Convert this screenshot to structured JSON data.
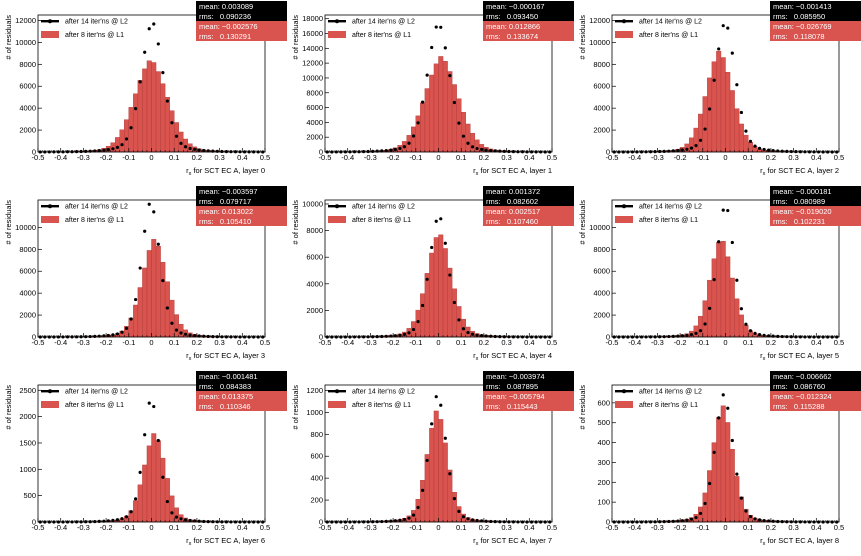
{
  "figure_title": "",
  "colors": {
    "l1": "#d9534f",
    "l1_edge": "#b03a36",
    "l2_marker": "#000000",
    "stat_dark": "#000000",
    "stat_red": "#d9534f"
  },
  "chart_data": [
    {
      "type": "bar",
      "title": "",
      "xlabel": "r_x for SCT EC A, layer 0",
      "xlabel_main": "r",
      "xlabel_sub": "x",
      "xlabel_rest": " for SCT EC A, layer 0",
      "ylabel": "# of residuals",
      "xlim": [
        -0.5,
        0.5
      ],
      "ylim": [
        0,
        12500
      ],
      "xticks": [
        "-0.5",
        "-0.4",
        "-0.3",
        "-0.2",
        "-0.1",
        "0",
        "0.1",
        "0.2",
        "0.3",
        "0.4",
        "0.5"
      ],
      "yticks": [
        0,
        2000,
        4000,
        6000,
        8000,
        10000,
        12000
      ],
      "series": [
        {
          "name": "after 8 iter'ns @ L1",
          "kind": "histogram",
          "peak": 8500,
          "sigma": 0.075,
          "tail": 0.26,
          "mean": -0.002576,
          "rms": 0.130291
        },
        {
          "name": "after 14 iter'ns @ L2",
          "kind": "markers",
          "peak": 12000,
          "sigma": 0.048,
          "tail": 0.22,
          "mean": 0.003089,
          "rms": 0.090236
        }
      ],
      "stats": {
        "l2_mean": "mean: 0.003089",
        "l2_rms": "rms:   0.090236",
        "l1_mean": "mean: −0.002576",
        "l1_rms": "rms:   0.130291"
      }
    },
    {
      "type": "bar",
      "title": "",
      "xlabel": "r_x for SCT EC A, layer 1",
      "xlabel_main": "r",
      "xlabel_sub": "x",
      "xlabel_rest": " for SCT EC A, layer 1",
      "ylabel": "# of residuals",
      "xlim": [
        -0.5,
        0.5
      ],
      "ylim": [
        0,
        18500
      ],
      "xticks": [
        "-0.5",
        "-0.4",
        "-0.3",
        "-0.2",
        "-0.1",
        "0",
        "0.1",
        "0.2",
        "0.3",
        "0.4",
        "0.5"
      ],
      "yticks": [
        0,
        2000,
        4000,
        6000,
        8000,
        10000,
        12000,
        14000,
        16000,
        18000
      ],
      "series": [
        {
          "name": "after 8 iter'ns @ L1",
          "kind": "histogram",
          "peak": 13000,
          "sigma": 0.075,
          "tail": 0.26,
          "mean": 0.012866,
          "rms": 0.133674
        },
        {
          "name": "after 14 iter'ns @ L2",
          "kind": "markers",
          "peak": 17600,
          "sigma": 0.05,
          "tail": 0.22,
          "mean": -0.000167,
          "rms": 0.09345
        }
      ],
      "stats": {
        "l2_mean": "mean: −0.000167",
        "l2_rms": "rms:   0.093450",
        "l1_mean": "mean: 0.012866",
        "l1_rms": "rms:   0.133674"
      }
    },
    {
      "type": "bar",
      "title": "",
      "xlabel": "r_x for SCT EC A, layer 2",
      "xlabel_main": "r",
      "xlabel_sub": "x",
      "xlabel_rest": " for SCT EC A, layer 2",
      "ylabel": "# of residuals",
      "xlim": [
        -0.5,
        0.5
      ],
      "ylim": [
        0,
        12500
      ],
      "xticks": [
        "-0.5",
        "-0.4",
        "-0.3",
        "-0.2",
        "-0.1",
        "0",
        "0.1",
        "0.2",
        "0.3",
        "0.4",
        "0.5"
      ],
      "yticks": [
        0,
        2000,
        4000,
        6000,
        8000,
        10000,
        12000
      ],
      "series": [
        {
          "name": "after 8 iter'ns @ L1",
          "kind": "histogram",
          "peak": 9300,
          "sigma": 0.06,
          "tail": 0.22,
          "mean": -0.026769,
          "rms": 0.118078
        },
        {
          "name": "after 14 iter'ns @ L2",
          "kind": "markers",
          "peak": 12000,
          "sigma": 0.045,
          "tail": 0.2,
          "mean": -0.001413,
          "rms": 0.08595
        }
      ],
      "stats": {
        "l2_mean": "mean: −0.001413",
        "l2_rms": "rms:   0.085950",
        "l1_mean": "mean: −0.026769",
        "l1_rms": "rms:   0.118078"
      }
    },
    {
      "type": "bar",
      "title": "",
      "xlabel": "r_x for SCT EC A, layer 3",
      "xlabel_main": "r",
      "xlabel_sub": "x",
      "xlabel_rest": " for SCT EC A, layer 3",
      "ylabel": "# of residuals",
      "xlim": [
        -0.5,
        0.5
      ],
      "ylim": [
        0,
        12500
      ],
      "xticks": [
        "-0.5",
        "-0.4",
        "-0.3",
        "-0.2",
        "-0.1",
        "0",
        "0.1",
        "0.2",
        "0.3",
        "0.4",
        "0.5"
      ],
      "yticks": [
        0,
        2000,
        4000,
        6000,
        8000,
        10000
      ],
      "series": [
        {
          "name": "after 8 iter'ns @ L1",
          "kind": "histogram",
          "peak": 9000,
          "sigma": 0.055,
          "tail": 0.22,
          "mean": 0.013022,
          "rms": 0.10541
        },
        {
          "name": "after 14 iter'ns @ L2",
          "kind": "markers",
          "peak": 12500,
          "sigma": 0.04,
          "tail": 0.18,
          "mean": -0.003597,
          "rms": 0.079717
        }
      ],
      "stats": {
        "l2_mean": "mean: −0.003597",
        "l2_rms": "rms:   0.079717",
        "l1_mean": "mean: 0.013022",
        "l1_rms": "rms:   0.105410"
      }
    },
    {
      "type": "bar",
      "title": "",
      "xlabel": "r_x for SCT EC A, layer 4",
      "xlabel_main": "r",
      "xlabel_sub": "x",
      "xlabel_rest": " for SCT EC A, layer 4",
      "ylabel": "# of residuals",
      "xlim": [
        -0.5,
        0.5
      ],
      "ylim": [
        0,
        10300
      ],
      "xticks": [
        "-0.5",
        "-0.4",
        "-0.3",
        "-0.2",
        "-0.1",
        "0",
        "0.1",
        "0.2",
        "0.3",
        "0.4",
        "0.5"
      ],
      "yticks": [
        0,
        2000,
        4000,
        6000,
        8000,
        10000
      ],
      "series": [
        {
          "name": "after 8 iter'ns @ L1",
          "kind": "histogram",
          "peak": 7900,
          "sigma": 0.055,
          "tail": 0.22,
          "mean": 0.002517,
          "rms": 0.10746
        },
        {
          "name": "after 14 iter'ns @ L2",
          "kind": "markers",
          "peak": 9300,
          "sigma": 0.042,
          "tail": 0.18,
          "mean": 0.001372,
          "rms": 0.082602
        }
      ],
      "stats": {
        "l2_mean": "mean: 0.001372",
        "l2_rms": "rms:   0.082602",
        "l1_mean": "mean: 0.002517",
        "l1_rms": "rms:   0.107460"
      }
    },
    {
      "type": "bar",
      "title": "",
      "xlabel": "r_x for SCT EC A, layer 5",
      "xlabel_main": "r",
      "xlabel_sub": "x",
      "xlabel_rest": " for SCT EC A, layer 5",
      "ylabel": "# of residuals",
      "xlim": [
        -0.5,
        0.5
      ],
      "ylim": [
        0,
        12500
      ],
      "xticks": [
        "-0.5",
        "-0.4",
        "-0.3",
        "-0.2",
        "-0.1",
        "0",
        "0.1",
        "0.2",
        "0.3",
        "0.4",
        "0.5"
      ],
      "yticks": [
        0,
        2000,
        4000,
        6000,
        8000,
        10000
      ],
      "series": [
        {
          "name": "after 8 iter'ns @ L1",
          "kind": "histogram",
          "peak": 9100,
          "sigma": 0.05,
          "tail": 0.2,
          "mean": -0.01902,
          "rms": 0.102231
        },
        {
          "name": "after 14 iter'ns @ L2",
          "kind": "markers",
          "peak": 12300,
          "sigma": 0.038,
          "tail": 0.17,
          "mean": -0.000181,
          "rms": 0.080989
        }
      ],
      "stats": {
        "l2_mean": "mean: −0.000181",
        "l2_rms": "rms:   0.080989",
        "l1_mean": "mean: −0.019020",
        "l1_rms": "rms:   0.102231"
      }
    },
    {
      "type": "bar",
      "title": "",
      "xlabel": "r_x for SCT EC A, layer 6",
      "xlabel_main": "r",
      "xlabel_sub": "x",
      "xlabel_rest": " for SCT EC A, layer 6",
      "ylabel": "# of residuals",
      "xlim": [
        -0.5,
        0.5
      ],
      "ylim": [
        0,
        2600
      ],
      "xticks": [
        "-0.5",
        "-0.4",
        "-0.3",
        "-0.2",
        "-0.1",
        "0",
        "0.1",
        "0.2",
        "0.3",
        "0.4",
        "0.5"
      ],
      "yticks": [
        0,
        500,
        1000,
        1500,
        2000,
        2500
      ],
      "series": [
        {
          "name": "after 8 iter'ns @ L1",
          "kind": "histogram",
          "peak": 1700,
          "sigma": 0.048,
          "tail": 0.2,
          "mean": 0.013375,
          "rms": 0.110346
        },
        {
          "name": "after 14 iter'ns @ L2",
          "kind": "markers",
          "peak": 2380,
          "sigma": 0.035,
          "tail": 0.17,
          "mean": -0.001481,
          "rms": 0.084383
        }
      ],
      "stats": {
        "l2_mean": "mean: −0.001481",
        "l2_rms": "rms:   0.084383",
        "l1_mean": "mean: 0.013375",
        "l1_rms": "rms:   0.110346"
      }
    },
    {
      "type": "bar",
      "title": "",
      "xlabel": "r_x for SCT EC A, layer 7",
      "xlabel_main": "r",
      "xlabel_sub": "x",
      "xlabel_rest": " for SCT EC A, layer 7",
      "ylabel": "# of residuals",
      "xlim": [
        -0.5,
        0.5
      ],
      "ylim": [
        0,
        1250
      ],
      "xticks": [
        "-0.5",
        "-0.4",
        "-0.3",
        "-0.2",
        "-0.1",
        "0",
        "0.1",
        "0.2",
        "0.3",
        "0.4",
        "0.5"
      ],
      "yticks": [
        0,
        200,
        400,
        600,
        800,
        1000,
        1200
      ],
      "series": [
        {
          "name": "after 8 iter'ns @ L1",
          "kind": "histogram",
          "peak": 1030,
          "sigma": 0.045,
          "tail": 0.2,
          "mean": -0.005794,
          "rms": 0.115443
        },
        {
          "name": "after 14 iter'ns @ L2",
          "kind": "markers",
          "peak": 1180,
          "sigma": 0.038,
          "tail": 0.17,
          "mean": -0.003974,
          "rms": 0.087895
        }
      ],
      "stats": {
        "l2_mean": "mean: −0.003974",
        "l2_rms": "rms:   0.087895",
        "l1_mean": "mean: −0.005794",
        "l1_rms": "rms:   0.115443"
      }
    },
    {
      "type": "bar",
      "title": "",
      "xlabel": "r_x for SCT EC A, layer 8",
      "xlabel_main": "r",
      "xlabel_sub": "x",
      "xlabel_rest": " for SCT EC A, layer 8",
      "ylabel": "# of residuals",
      "xlim": [
        -0.5,
        0.5
      ],
      "ylim": [
        0,
        690
      ],
      "xticks": [
        "-0.5",
        "-0.4",
        "-0.3",
        "-0.2",
        "-0.1",
        "0",
        "0.1",
        "0.2",
        "0.3",
        "0.4",
        "0.5"
      ],
      "yticks": [
        0,
        100,
        200,
        300,
        400,
        500,
        600
      ],
      "series": [
        {
          "name": "after 8 iter'ns @ L1",
          "kind": "histogram",
          "peak": 590,
          "sigma": 0.045,
          "tail": 0.2,
          "mean": -0.012324,
          "rms": 0.115288
        },
        {
          "name": "after 14 iter'ns @ L2",
          "kind": "markers",
          "peak": 650,
          "sigma": 0.04,
          "tail": 0.17,
          "mean": -0.006662,
          "rms": 0.08676
        }
      ],
      "stats": {
        "l2_mean": "mean: −0.006662",
        "l2_rms": "rms:   0.086760",
        "l1_mean": "mean: −0.012324",
        "l1_rms": "rms:   0.115288"
      }
    }
  ]
}
